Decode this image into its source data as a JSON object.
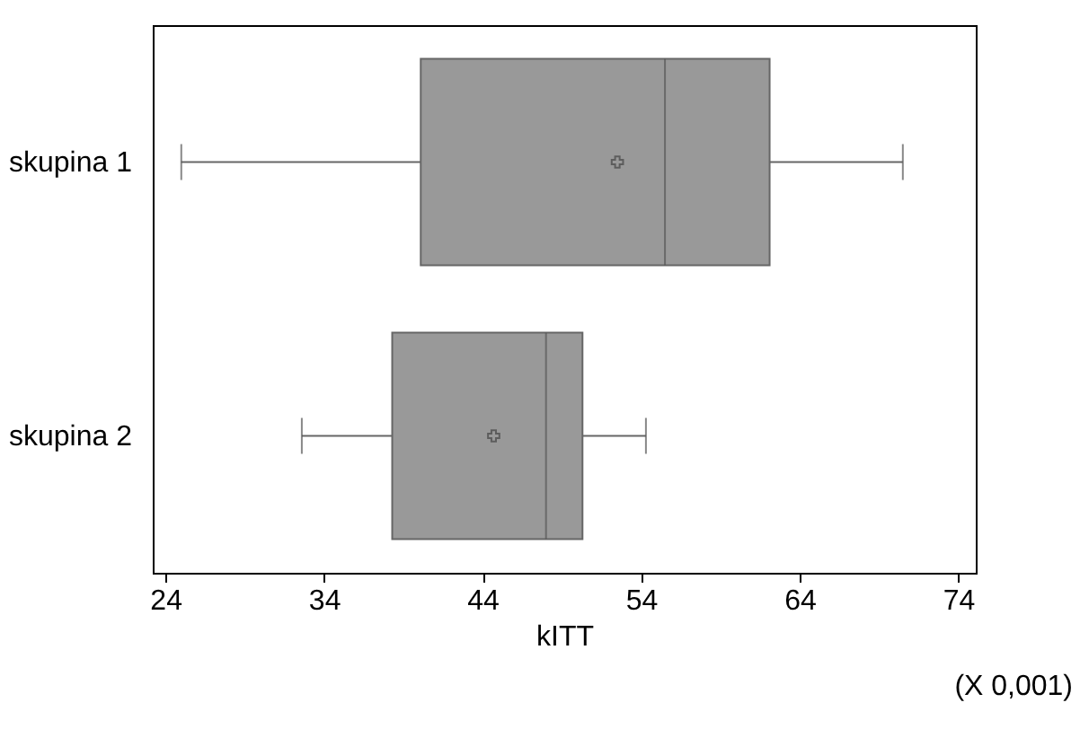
{
  "chart_data": {
    "type": "box",
    "orientation": "horizontal",
    "xlabel": "kITT",
    "categories": [
      "skupina 1",
      "skupina 2"
    ],
    "series": [
      {
        "color": "#999999",
        "boxes": [
          {
            "low": 25.0,
            "q1": 40.1,
            "median": 55.5,
            "q3": 62.1,
            "high": 70.5,
            "mean": 52.5
          },
          {
            "low": 32.6,
            "q1": 38.3,
            "median": 48.0,
            "q3": 50.3,
            "high": 54.3,
            "mean": 44.7
          }
        ]
      }
    ],
    "xlim": [
      23.2,
      75.1
    ],
    "xticks": [
      24,
      34,
      44,
      54,
      64,
      74
    ],
    "grid": false,
    "marker": "cross",
    "annotations": [
      "(X 0,001)"
    ]
  }
}
